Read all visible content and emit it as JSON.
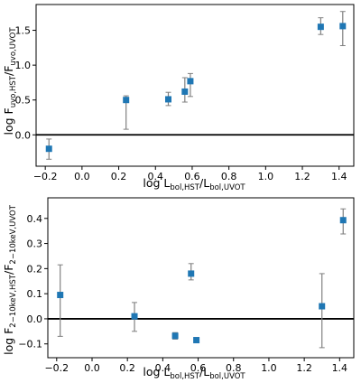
{
  "chart_data": [
    {
      "type": "scatter",
      "title": "",
      "xlabel": "log L_{bol,HST}/L_{bol,UVOT}",
      "ylabel": "log F_{uvo,HST}/F_{uvo,UVOT}",
      "xlim": [
        -0.25,
        1.48
      ],
      "ylim": [
        -0.45,
        1.87
      ],
      "xticks": [
        -0.2,
        0.0,
        0.2,
        0.4,
        0.6,
        0.8,
        1.0,
        1.2,
        1.4
      ],
      "yticks": [
        0.0,
        0.5,
        1.0,
        1.5
      ],
      "xtick_labels": [
        "−0.2",
        "0.0",
        "0.2",
        "0.4",
        "0.6",
        "0.8",
        "1.0",
        "1.2",
        "1.4"
      ],
      "ytick_labels": [
        "0.0",
        "0.5",
        "1.0",
        "1.5"
      ],
      "reference_line": 0.0,
      "grid": false,
      "marker_color": "#1f77b4",
      "errorbar_color": "#808080",
      "points": [
        {
          "x": -0.18,
          "y": -0.2,
          "err_low": 0.15,
          "err_high": 0.14
        },
        {
          "x": 0.24,
          "y": 0.5,
          "err_low": 0.42,
          "err_high": 0.06
        },
        {
          "x": 0.47,
          "y": 0.51,
          "err_low": 0.09,
          "err_high": 0.1
        },
        {
          "x": 0.56,
          "y": 0.62,
          "err_low": 0.15,
          "err_high": 0.2
        },
        {
          "x": 0.59,
          "y": 0.77,
          "err_low": 0.22,
          "err_high": 0.11
        },
        {
          "x": 1.3,
          "y": 1.55,
          "err_low": 0.11,
          "err_high": 0.13
        },
        {
          "x": 1.42,
          "y": 1.56,
          "err_low": 0.28,
          "err_high": 0.21
        }
      ]
    },
    {
      "type": "scatter",
      "title": "",
      "xlabel": "log L_{bol,HST}/L_{bol,UVOT}",
      "ylabel": "log F_{2−10keV,HST}/F_{2−10keV,UVOT}",
      "xlim": [
        -0.25,
        1.48
      ],
      "ylim": [
        -0.155,
        0.482
      ],
      "xticks": [
        -0.2,
        0.0,
        0.2,
        0.4,
        0.6,
        0.8,
        1.0,
        1.2,
        1.4
      ],
      "yticks": [
        -0.1,
        0.0,
        0.1,
        0.2,
        0.3,
        0.4
      ],
      "xtick_labels": [
        "−0.2",
        "0.0",
        "0.2",
        "0.4",
        "0.6",
        "0.8",
        "1.0",
        "1.2",
        "1.4"
      ],
      "ytick_labels": [
        "−0.1",
        "0.0",
        "0.1",
        "0.2",
        "0.3",
        "0.4"
      ],
      "reference_line": 0.0,
      "grid": false,
      "marker_color": "#1f77b4",
      "errorbar_color": "#808080",
      "points": [
        {
          "x": -0.18,
          "y": 0.095,
          "err_low": 0.165,
          "err_high": 0.12
        },
        {
          "x": 0.24,
          "y": 0.01,
          "err_low": 0.06,
          "err_high": 0.055
        },
        {
          "x": 0.47,
          "y": -0.068,
          "err_low": 0.013,
          "err_high": 0.013
        },
        {
          "x": 0.56,
          "y": 0.18,
          "err_low": 0.025,
          "err_high": 0.04
        },
        {
          "x": 0.59,
          "y": -0.085,
          "err_low": 0.01,
          "err_high": 0.01
        },
        {
          "x": 1.3,
          "y": 0.05,
          "err_low": 0.165,
          "err_high": 0.13
        },
        {
          "x": 1.42,
          "y": 0.393,
          "err_low": 0.055,
          "err_high": 0.045
        }
      ]
    }
  ]
}
